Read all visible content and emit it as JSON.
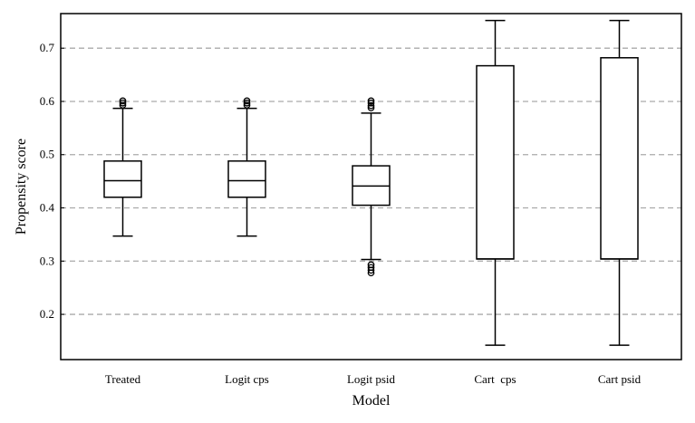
{
  "chart_data": {
    "type": "box",
    "xlabel": "Model",
    "ylabel": "Propensity score",
    "ylim": [
      0.115,
      0.765
    ],
    "yticks": [
      0.2,
      0.3,
      0.4,
      0.5,
      0.6,
      0.7
    ],
    "ytick_labels": [
      "0.2",
      "0.3",
      "0.4",
      "0.5",
      "0.6",
      "0.7"
    ],
    "grid": "horizontal dashed",
    "grid_color": "#aaaaaa",
    "box_color": "#000000",
    "categories": [
      "Treated",
      "Logit cps",
      "Logit psid",
      "Cart  cps",
      "Cart psid"
    ],
    "series": [
      {
        "category": "Treated",
        "whisker_low": 0.347,
        "q1": 0.42,
        "median": 0.451,
        "q3": 0.488,
        "whisker_high": 0.587,
        "outliers": [
          0.593,
          0.597,
          0.601
        ]
      },
      {
        "category": "Logit cps",
        "whisker_low": 0.347,
        "q1": 0.42,
        "median": 0.451,
        "q3": 0.488,
        "whisker_high": 0.587,
        "outliers": [
          0.593,
          0.597,
          0.601
        ]
      },
      {
        "category": "Logit psid",
        "whisker_low": 0.303,
        "q1": 0.405,
        "median": 0.441,
        "q3": 0.479,
        "whisker_high": 0.578,
        "outliers": [
          0.588,
          0.592,
          0.597,
          0.601,
          0.278,
          0.283,
          0.288,
          0.293
        ]
      },
      {
        "category": "Cart  cps",
        "whisker_low": 0.142,
        "q1": 0.304,
        "median": 0.304,
        "q3": 0.667,
        "whisker_high": 0.752,
        "outliers": []
      },
      {
        "category": "Cart psid",
        "whisker_low": 0.142,
        "q1": 0.304,
        "median": 0.304,
        "q3": 0.682,
        "whisker_high": 0.752,
        "outliers": []
      }
    ]
  }
}
